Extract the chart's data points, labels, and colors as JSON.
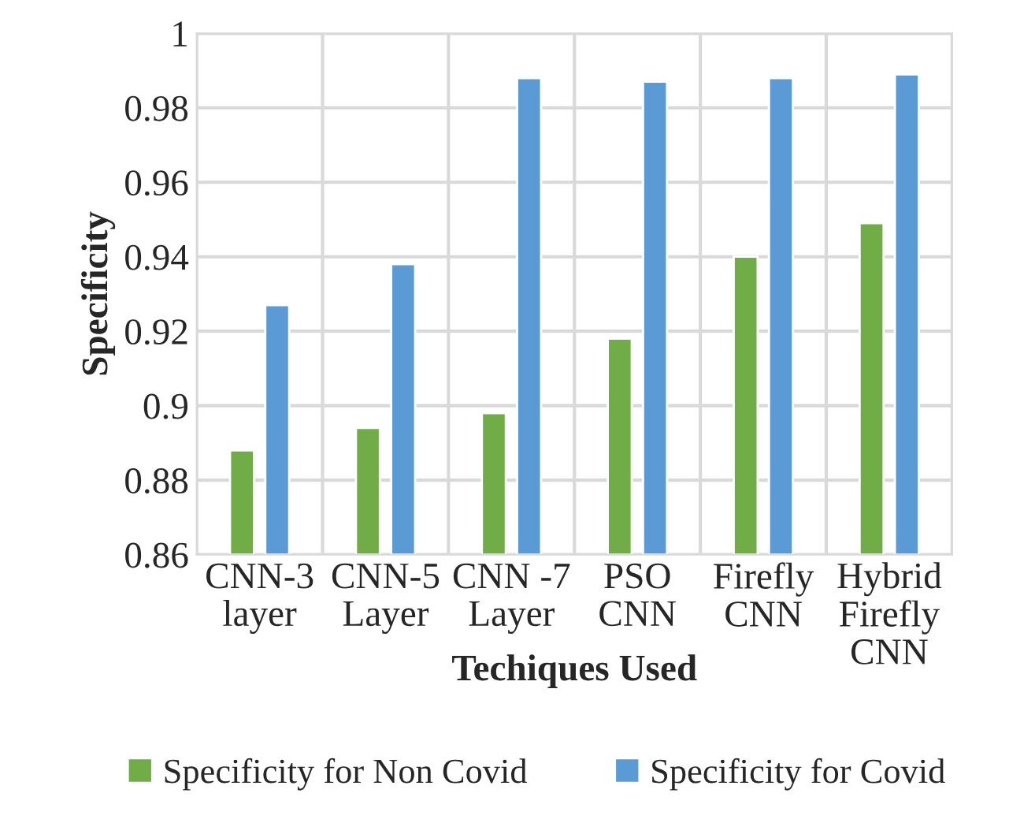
{
  "chart_data": {
    "type": "bar",
    "categories": [
      "CNN-3\nlayer",
      "CNN-5\nLayer",
      "CNN -7\nLayer",
      "PSO\nCNN",
      "Firefly\nCNN",
      "Hybrid\nFirefly\nCNN"
    ],
    "series": [
      {
        "name": "Specificity for Non Covid",
        "color": "#70ad47",
        "values": [
          0.888,
          0.894,
          0.898,
          0.918,
          0.94,
          0.949
        ]
      },
      {
        "name": "Specificity for Covid",
        "color": "#5b9bd5",
        "values": [
          0.927,
          0.938,
          0.988,
          0.987,
          0.988,
          0.989
        ]
      }
    ],
    "xlabel": "Techiques Used",
    "ylabel": "Specificity",
    "ylim": [
      0.86,
      1
    ],
    "yticks": [
      {
        "value": 0.86,
        "label": "0.86"
      },
      {
        "value": 0.88,
        "label": "0.88"
      },
      {
        "value": 0.9,
        "label": "0.9"
      },
      {
        "value": 0.92,
        "label": "0.92"
      },
      {
        "value": 0.94,
        "label": "0.94"
      },
      {
        "value": 0.96,
        "label": "0.96"
      },
      {
        "value": 0.98,
        "label": "0.98"
      },
      {
        "value": 1,
        "label": "1"
      }
    ],
    "grid": true,
    "legend": "bottom"
  }
}
